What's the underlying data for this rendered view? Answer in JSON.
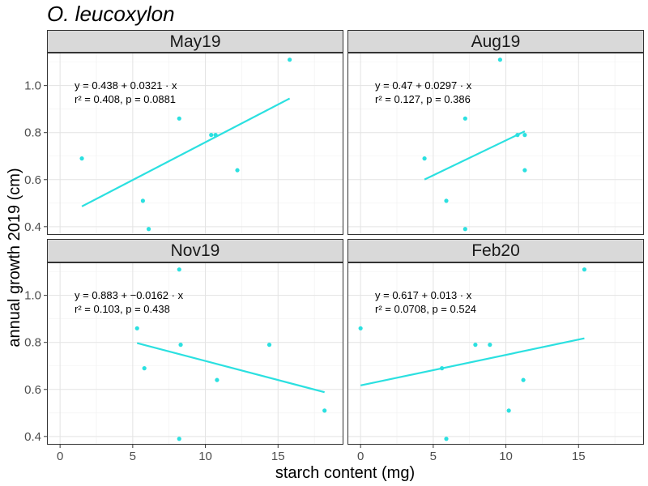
{
  "chart_data": {
    "type": "scatter",
    "title": "O. leucoxylon",
    "xlabel": "starch content (mg)",
    "ylabel": "annual growth 2019 (cm)",
    "xlim": [
      -0.9,
      19.5
    ],
    "ylim": [
      0.365,
      1.14
    ],
    "x_ticks": [
      0,
      5,
      10,
      15
    ],
    "y_ticks": [
      0.4,
      0.6,
      0.8,
      1.0
    ],
    "x_tick_labels": [
      "0",
      "5",
      "10",
      "15"
    ],
    "y_tick_labels": [
      "0.4",
      "0.6",
      "0.8",
      "1.0"
    ],
    "grid": true,
    "point_color": "#2BE0E0",
    "line_color": "#2BE0E0",
    "panels": [
      {
        "name": "May19",
        "points": [
          {
            "x": 1.5,
            "y": 0.69
          },
          {
            "x": 5.7,
            "y": 0.51
          },
          {
            "x": 6.1,
            "y": 0.39
          },
          {
            "x": 8.2,
            "y": 0.86
          },
          {
            "x": 10.4,
            "y": 0.79
          },
          {
            "x": 10.7,
            "y": 0.79
          },
          {
            "x": 12.2,
            "y": 0.64
          },
          {
            "x": 15.8,
            "y": 1.11
          }
        ],
        "fit": {
          "intercept": 0.438,
          "slope": 0.0321,
          "x_range": [
            1.5,
            15.8
          ]
        },
        "equation_line1": "y = 0.438 + 0.0321 · x",
        "equation_line2": "r² = 0.408,  p = 0.0881"
      },
      {
        "name": "Aug19",
        "points": [
          {
            "x": 4.4,
            "y": 0.69
          },
          {
            "x": 5.9,
            "y": 0.51
          },
          {
            "x": 7.2,
            "y": 0.86
          },
          {
            "x": 7.2,
            "y": 0.39
          },
          {
            "x": 9.6,
            "y": 1.11
          },
          {
            "x": 10.8,
            "y": 0.79
          },
          {
            "x": 11.3,
            "y": 0.79
          },
          {
            "x": 11.3,
            "y": 0.64
          }
        ],
        "fit": {
          "intercept": 0.47,
          "slope": 0.0297,
          "x_range": [
            4.4,
            11.3
          ]
        },
        "equation_line1": "y = 0.47 + 0.0297 · x",
        "equation_line2": "r² = 0.127,  p = 0.386"
      },
      {
        "name": "Nov19",
        "points": [
          {
            "x": 5.3,
            "y": 0.86
          },
          {
            "x": 5.8,
            "y": 0.69
          },
          {
            "x": 8.2,
            "y": 1.11
          },
          {
            "x": 8.3,
            "y": 0.79
          },
          {
            "x": 8.2,
            "y": 0.39
          },
          {
            "x": 10.8,
            "y": 0.64
          },
          {
            "x": 14.4,
            "y": 0.79
          },
          {
            "x": 18.2,
            "y": 0.51
          }
        ],
        "fit": {
          "intercept": 0.883,
          "slope": -0.0162,
          "x_range": [
            5.3,
            18.2
          ]
        },
        "equation_line1": "y = 0.883 + −0.0162 · x",
        "equation_line2": "r² = 0.103,  p = 0.438"
      },
      {
        "name": "Feb20",
        "points": [
          {
            "x": 0.0,
            "y": 0.86
          },
          {
            "x": 5.6,
            "y": 0.69
          },
          {
            "x": 5.9,
            "y": 0.39
          },
          {
            "x": 7.9,
            "y": 0.79
          },
          {
            "x": 8.9,
            "y": 0.79
          },
          {
            "x": 10.2,
            "y": 0.51
          },
          {
            "x": 11.2,
            "y": 0.64
          },
          {
            "x": 15.4,
            "y": 1.11
          }
        ],
        "fit": {
          "intercept": 0.617,
          "slope": 0.013,
          "x_range": [
            0.0,
            15.4
          ]
        },
        "equation_line1": "y = 0.617 + 0.013 · x",
        "equation_line2": "r² = 0.0708,  p = 0.524"
      }
    ]
  }
}
